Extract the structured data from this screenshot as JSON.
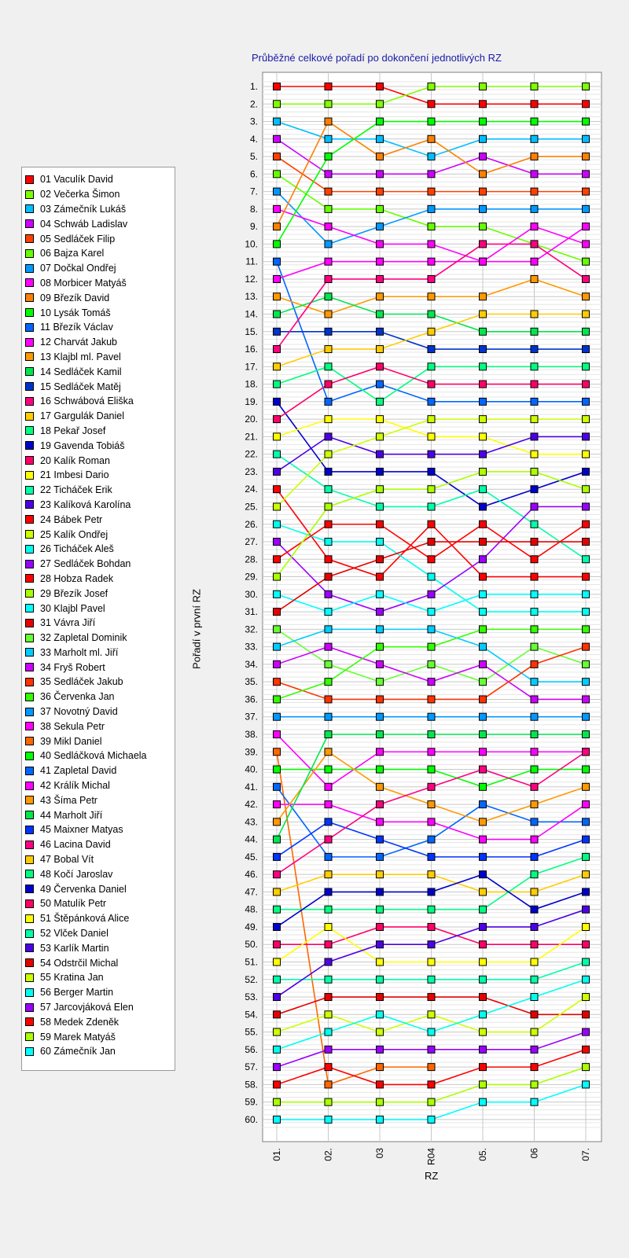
{
  "chart_data": {
    "type": "line",
    "title": "Průběžné celkové pořadí po dokončení jednotlivých RZ",
    "xlabel": "RZ",
    "ylabel": "Pořadí v první RZ",
    "x": [
      "01.",
      "02.",
      "03",
      "R04",
      "05.",
      "06",
      "07."
    ],
    "ylim": [
      1,
      60
    ],
    "y_ticks": [
      "1.",
      "2.",
      "3.",
      "4.",
      "5.",
      "6.",
      "7.",
      "8.",
      "9.",
      "10.",
      "11.",
      "12.",
      "13.",
      "14.",
      "15.",
      "16.",
      "17.",
      "18.",
      "19.",
      "20.",
      "21.",
      "22.",
      "23.",
      "24.",
      "25.",
      "26.",
      "27.",
      "28.",
      "29.",
      "30.",
      "31.",
      "32.",
      "33.",
      "34.",
      "35.",
      "36.",
      "37.",
      "38.",
      "39.",
      "40.",
      "41.",
      "42.",
      "43.",
      "44.",
      "45.",
      "46.",
      "47.",
      "48.",
      "49.",
      "50.",
      "51.",
      "52.",
      "53.",
      "54.",
      "55.",
      "56.",
      "57.",
      "58.",
      "59.",
      "60."
    ],
    "y_inverted": true,
    "grid": true,
    "legend_position": "left",
    "series": [
      {
        "name": "01 Vaculík David",
        "color": "#ff0000",
        "values": [
          1,
          1,
          1,
          2,
          2,
          2,
          2
        ]
      },
      {
        "name": "02 Večerka Šimon",
        "color": "#7fff00",
        "values": [
          2,
          2,
          2,
          1,
          1,
          1,
          1
        ]
      },
      {
        "name": "03 Zámečník Lukáš",
        "color": "#00bfff",
        "values": [
          3,
          4,
          4,
          5,
          4,
          4,
          4
        ]
      },
      {
        "name": "04 Schwáb Ladislav",
        "color": "#cc00ff",
        "values": [
          4,
          6,
          6,
          6,
          5,
          6,
          6
        ]
      },
      {
        "name": "05 Sedláček Filip",
        "color": "#ff4000",
        "values": [
          5,
          7,
          7,
          7,
          7,
          7,
          7
        ]
      },
      {
        "name": "06 Bajza Karel",
        "color": "#66ff00",
        "values": [
          6,
          8,
          8,
          9,
          9,
          10,
          11
        ]
      },
      {
        "name": "07 Dočkal Ondřej",
        "color": "#0099ff",
        "values": [
          7,
          10,
          9,
          8,
          8,
          8,
          8
        ]
      },
      {
        "name": "08 Morbicer Matyáš",
        "color": "#ff00ff",
        "values": [
          8,
          9,
          10,
          10,
          11,
          9,
          10
        ]
      },
      {
        "name": "09 Březík David",
        "color": "#ff8000",
        "values": [
          9,
          3,
          5,
          4,
          6,
          5,
          5
        ]
      },
      {
        "name": "10 Lysák Tomáš",
        "color": "#00ff00",
        "values": [
          10,
          5,
          3,
          3,
          3,
          3,
          3
        ]
      },
      {
        "name": "11 Březík Václav",
        "color": "#0066ff",
        "values": [
          11,
          19,
          18,
          19,
          19,
          19,
          19
        ]
      },
      {
        "name": "12 Charvát Jakub",
        "color": "#ff00ff",
        "values": [
          12,
          11,
          11,
          11,
          11,
          11,
          9
        ]
      },
      {
        "name": "13 Klajbl ml. Pavel",
        "color": "#ff9900",
        "values": [
          13,
          14,
          13,
          13,
          13,
          12,
          13
        ]
      },
      {
        "name": "14 Sedláček Kamil",
        "color": "#00e64d",
        "values": [
          14,
          13,
          14,
          14,
          15,
          15,
          15
        ]
      },
      {
        "name": "15 Sedláček Matěj",
        "color": "#0033cc",
        "values": [
          15,
          15,
          15,
          16,
          16,
          16,
          16
        ]
      },
      {
        "name": "16 Schwábová Eliška",
        "color": "#ff0080",
        "values": [
          16,
          12,
          12,
          12,
          10,
          10,
          12
        ]
      },
      {
        "name": "17 Gargulák Daniel",
        "color": "#ffcc00",
        "values": [
          17,
          16,
          16,
          15,
          14,
          14,
          14
        ]
      },
      {
        "name": "18 Pekař Josef",
        "color": "#00ff80",
        "values": [
          18,
          17,
          19,
          17,
          17,
          17,
          17
        ]
      },
      {
        "name": "19 Gavenda Tobiáš",
        "color": "#0000cc",
        "values": [
          19,
          23,
          23,
          23,
          25,
          24,
          23
        ]
      },
      {
        "name": "20 Kalík Roman",
        "color": "#ff0066",
        "values": [
          20,
          18,
          17,
          18,
          18,
          18,
          18
        ]
      },
      {
        "name": "21 Imbesi Dario",
        "color": "#ffff00",
        "values": [
          21,
          20,
          20,
          21,
          21,
          22,
          22
        ]
      },
      {
        "name": "22 Ticháček Erik",
        "color": "#00ffaa",
        "values": [
          22,
          24,
          25,
          25,
          24,
          26,
          28
        ]
      },
      {
        "name": "23 Kalíková Karolína",
        "color": "#4d00e6",
        "values": [
          23,
          21,
          22,
          22,
          22,
          21,
          21
        ]
      },
      {
        "name": "24 Bábek Petr",
        "color": "#ff0000",
        "values": [
          24,
          28,
          29,
          26,
          29,
          29,
          29
        ]
      },
      {
        "name": "25 Kalík Ondřej",
        "color": "#ccff00",
        "values": [
          25,
          22,
          21,
          20,
          20,
          20,
          20
        ]
      },
      {
        "name": "26 Ticháček Aleš",
        "color": "#00ffee",
        "values": [
          26,
          27,
          27,
          29,
          31,
          31,
          31
        ]
      },
      {
        "name": "27 Sedláček Bohdan",
        "color": "#9900ff",
        "values": [
          27,
          30,
          31,
          30,
          28,
          25,
          25
        ]
      },
      {
        "name": "28 Hobza Radek",
        "color": "#ff0000",
        "values": [
          28,
          26,
          26,
          28,
          26,
          28,
          26
        ]
      },
      {
        "name": "29 Březík Josef",
        "color": "#aaff00",
        "values": [
          29,
          25,
          24,
          24,
          23,
          23,
          24
        ]
      },
      {
        "name": "30 Klajbl Pavel",
        "color": "#00ffff",
        "values": [
          30,
          31,
          30,
          31,
          30,
          30,
          30
        ]
      },
      {
        "name": "31 Vávra Jiří",
        "color": "#e60000",
        "values": [
          31,
          29,
          28,
          27,
          27,
          27,
          27
        ]
      },
      {
        "name": "32 Zapletal Dominik",
        "color": "#66ff33",
        "values": [
          32,
          34,
          35,
          34,
          35,
          33,
          34
        ]
      },
      {
        "name": "33 Marholt ml. Jiří",
        "color": "#00ccff",
        "values": [
          33,
          32,
          32,
          32,
          33,
          35,
          35
        ]
      },
      {
        "name": "34 Fryš Robert",
        "color": "#cc00ff",
        "values": [
          34,
          33,
          34,
          35,
          34,
          36,
          36
        ]
      },
      {
        "name": "35 Sedláček Jakub",
        "color": "#ff3300",
        "values": [
          35,
          36,
          36,
          36,
          36,
          34,
          33
        ]
      },
      {
        "name": "36 Červenka Jan",
        "color": "#33ff00",
        "values": [
          36,
          35,
          33,
          33,
          32,
          32,
          32
        ]
      },
      {
        "name": "37 Novotný David",
        "color": "#0099ff",
        "values": [
          37,
          37,
          37,
          37,
          37,
          37,
          37
        ]
      },
      {
        "name": "38 Sekula Petr",
        "color": "#ff00ff",
        "values": [
          38,
          41,
          39,
          39,
          39,
          39,
          39
        ]
      },
      {
        "name": "39 Mikl Daniel",
        "color": "#ff6600",
        "values": [
          39,
          58,
          57,
          57,
          null,
          null,
          null
        ]
      },
      {
        "name": "40 Sedláčková Michaela",
        "color": "#00ff00",
        "values": [
          40,
          40,
          40,
          40,
          41,
          40,
          40
        ]
      },
      {
        "name": "41 Zapletal David",
        "color": "#0066ff",
        "values": [
          41,
          45,
          45,
          44,
          42,
          43,
          43
        ]
      },
      {
        "name": "42 Králík Michal",
        "color": "#ff00ff",
        "values": [
          42,
          42,
          43,
          43,
          44,
          44,
          42
        ]
      },
      {
        "name": "43 Šíma Petr",
        "color": "#ff9900",
        "values": [
          43,
          39,
          41,
          42,
          43,
          42,
          41
        ]
      },
      {
        "name": "44 Marholt Jiří",
        "color": "#00e64d",
        "values": [
          44,
          38,
          38,
          38,
          38,
          38,
          38
        ]
      },
      {
        "name": "45 Maixner Matyas",
        "color": "#0033ff",
        "values": [
          45,
          43,
          44,
          45,
          45,
          45,
          44
        ]
      },
      {
        "name": "46 Lacina David",
        "color": "#ff0080",
        "values": [
          46,
          44,
          42,
          41,
          40,
          41,
          39
        ]
      },
      {
        "name": "47 Bobal Vít",
        "color": "#ffcc00",
        "values": [
          47,
          46,
          46,
          46,
          47,
          47,
          46
        ]
      },
      {
        "name": "48 Kočí Jaroslav",
        "color": "#00ff80",
        "values": [
          48,
          48,
          48,
          48,
          48,
          46,
          45
        ]
      },
      {
        "name": "49 Červenka Daniel",
        "color": "#0000cc",
        "values": [
          49,
          47,
          47,
          47,
          46,
          48,
          47
        ]
      },
      {
        "name": "50 Matulík Petr",
        "color": "#ff0066",
        "values": [
          50,
          50,
          49,
          49,
          50,
          50,
          50
        ]
      },
      {
        "name": "51 Štěpánková Alice",
        "color": "#ffff00",
        "values": [
          51,
          49,
          51,
          51,
          51,
          51,
          49
        ]
      },
      {
        "name": "52 Vlček Daniel",
        "color": "#00ffaa",
        "values": [
          52,
          52,
          52,
          52,
          52,
          52,
          51
        ]
      },
      {
        "name": "53 Karlík Martin",
        "color": "#4d00e6",
        "values": [
          53,
          51,
          50,
          50,
          49,
          49,
          48
        ]
      },
      {
        "name": "54 Odstrčil Michal",
        "color": "#e60000",
        "values": [
          54,
          53,
          53,
          53,
          53,
          54,
          54
        ]
      },
      {
        "name": "55 Kratina Jan",
        "color": "#ccff00",
        "values": [
          55,
          54,
          55,
          54,
          55,
          55,
          53
        ]
      },
      {
        "name": "56 Berger Martin",
        "color": "#00ffee",
        "values": [
          56,
          55,
          54,
          55,
          54,
          53,
          52
        ]
      },
      {
        "name": "57 Jarcovjáková Elen",
        "color": "#9900ff",
        "values": [
          57,
          56,
          56,
          56,
          56,
          56,
          55
        ]
      },
      {
        "name": "58 Medek Zdeněk",
        "color": "#ff0000",
        "values": [
          58,
          57,
          58,
          58,
          57,
          57,
          56
        ]
      },
      {
        "name": "59 Marek Matyáš",
        "color": "#aaff00",
        "values": [
          59,
          59,
          59,
          59,
          58,
          58,
          57
        ]
      },
      {
        "name": "60 Zámečník Jan",
        "color": "#00ffff",
        "values": [
          60,
          60,
          60,
          60,
          59,
          59,
          58
        ]
      }
    ]
  }
}
